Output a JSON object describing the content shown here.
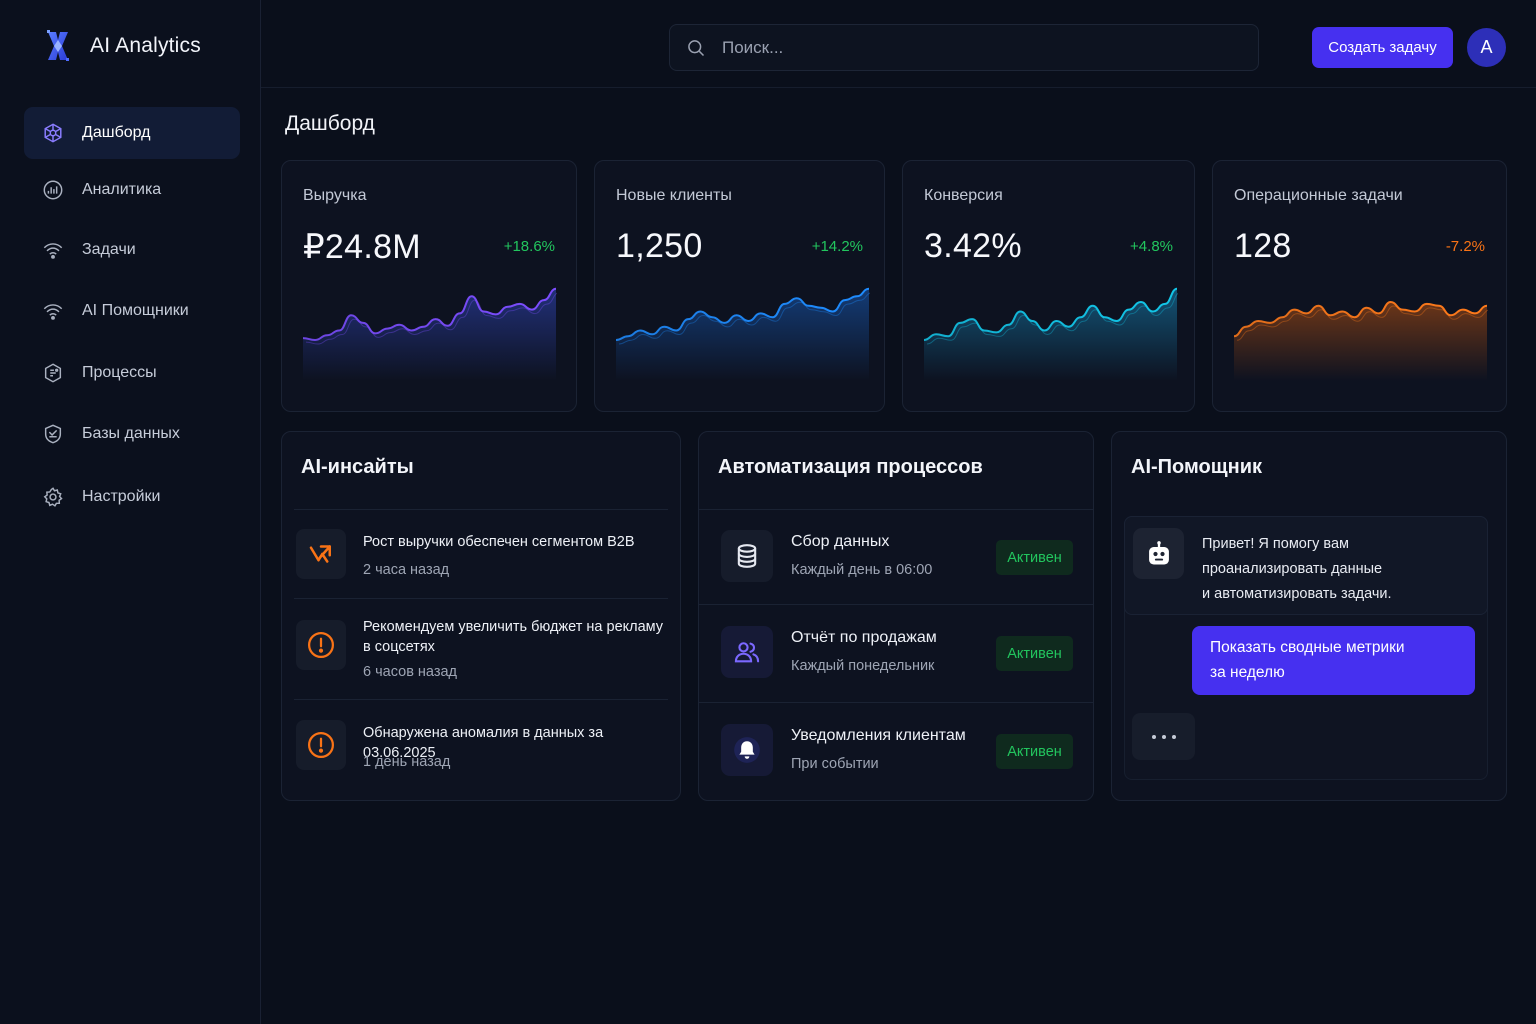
{
  "app": {
    "name": "AI Analytics"
  },
  "sidebar": {
    "items": [
      {
        "label": "Дашборд",
        "icon": "hexagon-network-icon",
        "active": true
      },
      {
        "label": "Аналитика",
        "icon": "chart-circle-icon"
      },
      {
        "label": "Задачи",
        "icon": "signal-waves-icon"
      },
      {
        "label": "AI Помощники",
        "icon": "signal-waves-icon"
      },
      {
        "label": "Процессы",
        "icon": "process-cube-icon"
      },
      {
        "label": "Базы данных",
        "icon": "database-shield-icon"
      },
      {
        "label": "Настройки",
        "icon": "gear-icon"
      }
    ]
  },
  "header": {
    "search_placeholder": "Поиск...",
    "create_label": "Создать задачу",
    "avatar_initial": "A"
  },
  "page": {
    "title": "Дашборд"
  },
  "kpis": [
    {
      "label": "Выручка",
      "value": "₽24.8M",
      "delta": "+18.6%",
      "trend": "up",
      "color": "#7c4dff",
      "color2": "#3b55e6",
      "spark": [
        22,
        20,
        25,
        30,
        46,
        38,
        27,
        32,
        36,
        30,
        34,
        42,
        35,
        48,
        66,
        50,
        47,
        55,
        58,
        52,
        62,
        74
      ]
    },
    {
      "label": "Новые клиенты",
      "value": "1,250",
      "delta": "+14.2%",
      "trend": "up",
      "color": "#1e8cff",
      "color2": "#1c6fe0",
      "spark": [
        20,
        24,
        30,
        26,
        34,
        30,
        42,
        50,
        44,
        38,
        46,
        40,
        48,
        44,
        58,
        64,
        56,
        54,
        50,
        62,
        66,
        74
      ]
    },
    {
      "label": "Конверсия",
      "value": "3.42%",
      "delta": "+4.8%",
      "trend": "up",
      "color": "#12c6e8",
      "color2": "#1aa4e0",
      "spark": [
        20,
        26,
        24,
        38,
        42,
        30,
        28,
        36,
        50,
        40,
        30,
        40,
        34,
        44,
        56,
        44,
        40,
        52,
        60,
        50,
        58,
        74
      ]
    },
    {
      "label": "Операционные задачи",
      "value": "128",
      "delta": "-7.2%",
      "trend": "down",
      "color": "#ff7a1a",
      "color2": "#e0620f",
      "spark": [
        24,
        34,
        40,
        38,
        44,
        52,
        48,
        56,
        46,
        50,
        44,
        54,
        48,
        60,
        52,
        50,
        58,
        56,
        46,
        52,
        48,
        56
      ]
    }
  ],
  "colors": {
    "positive": "#22c55e",
    "negative": "#f97316",
    "accent": "#4630f0"
  },
  "insights": {
    "title": "AI-инсайты",
    "items": [
      {
        "text": "Рост выручки обеспечен сегментом B2B",
        "time": "2 часа назад",
        "icon": "trend-arrow-icon"
      },
      {
        "text": "Рекомендуем увеличить бюджет на рекламу в соцсетях",
        "time": "6 часов назад",
        "icon": "alert-circle-icon"
      },
      {
        "text": "Обнаружена аномалия в данных за 03.06.2025",
        "time": "1 день назад",
        "icon": "alert-circle-icon"
      }
    ]
  },
  "automation": {
    "title": "Автоматизация процессов",
    "items": [
      {
        "name": "Сбор данных",
        "schedule": "Каждый день в 06:00",
        "status": "Активен",
        "icon": "database-icon"
      },
      {
        "name": "Отчёт по продажам",
        "schedule": "Каждый понедельник",
        "status": "Активен",
        "icon": "users-icon"
      },
      {
        "name": "Уведомления клиентам",
        "schedule": "При событии",
        "status": "Активен",
        "icon": "bell-icon"
      }
    ]
  },
  "assistant": {
    "title": "AI-Помощник",
    "greeting_line1": "Привет! Я помогу вам",
    "greeting_line2": "проанализировать данные",
    "greeting_line3": "и автоматизировать задачи.",
    "suggestion_line1": "Показать сводные метрики",
    "suggestion_line2": "за неделю"
  }
}
